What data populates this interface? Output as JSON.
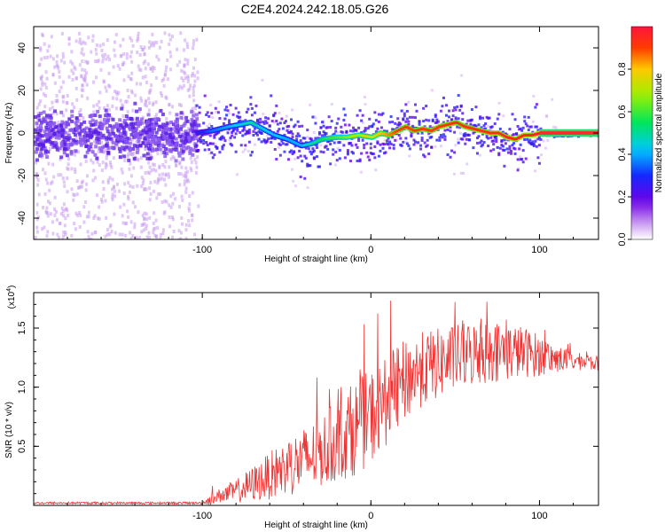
{
  "title": "C2E4.2024.242.18.05.G26",
  "colors": {
    "snr_line": "#ee3333",
    "axis": "#000000",
    "scatter_sparse": "#c79bf0",
    "scatter_dense": "#5a1ee6",
    "ridge_core": "#ff2a2a",
    "ridge_mid": "#22e06a",
    "ridge_edge": "#2ad4ff"
  },
  "chart_data": [
    {
      "type": "heatmap",
      "title": "C2E4.2024.242.18.05.G26",
      "xlabel": "Height of straight line (km)",
      "ylabel": "Frequency (Hz)",
      "xlim": [
        -200,
        135
      ],
      "ylim": [
        -50,
        50
      ],
      "x_ticks": [
        -100,
        0,
        100
      ],
      "x_tick_labels": [
        "-100",
        "0",
        "100"
      ],
      "y_ticks": [
        -40,
        -20,
        0,
        20,
        40
      ],
      "y_tick_labels": [
        "-40",
        "-20",
        "0",
        "20",
        "40"
      ],
      "grid": false,
      "colorbar": {
        "label": "Normalized spectral amplitude",
        "range": [
          0,
          1
        ],
        "ticks": [
          0.0,
          0.2,
          0.4,
          0.6,
          0.8
        ],
        "tick_labels": [
          "0.0",
          "0.2",
          "0.4",
          "0.6",
          "0.8"
        ],
        "colormap": "rainbow"
      },
      "ridge": {
        "x": [
          -105,
          -95,
          -85,
          -78,
          -72,
          -65,
          -58,
          -50,
          -42,
          -36,
          -30,
          -22,
          -15,
          -8,
          0,
          5,
          10,
          15,
          20,
          25,
          30,
          35,
          40,
          45,
          50,
          55,
          60,
          65,
          70,
          75,
          80,
          85,
          90,
          95,
          100,
          110,
          120,
          135
        ],
        "y": [
          0,
          1,
          3,
          4,
          5,
          2,
          -1,
          -3,
          -6,
          -5,
          -3,
          -2,
          -2,
          -1,
          -2,
          0,
          -1,
          1,
          3,
          1,
          2,
          1,
          3,
          4,
          5,
          3,
          2,
          1,
          0,
          0,
          -2,
          -3,
          -1,
          -1,
          0,
          0,
          0,
          0
        ],
        "amplitude": [
          0.25,
          0.35,
          0.4,
          0.45,
          0.5,
          0.45,
          0.42,
          0.4,
          0.4,
          0.5,
          0.55,
          0.6,
          0.65,
          0.7,
          0.75,
          0.8,
          0.85,
          0.9,
          0.9,
          0.9,
          0.9,
          0.9,
          0.92,
          0.92,
          0.92,
          0.92,
          0.92,
          0.93,
          0.94,
          0.95,
          0.95,
          0.95,
          0.95,
          0.96,
          0.98,
          1.0,
          1.0,
          1.0
        ]
      },
      "noise_region": {
        "x_range": [
          -200,
          -103
        ],
        "y_range": [
          -50,
          48
        ],
        "amplitude": [
          0,
          0.3
        ]
      }
    },
    {
      "type": "line",
      "xlabel": "Height of straight line (km)",
      "ylabel": "SNR (10 * v/v)",
      "scale_note": "(x10",
      "scale_exponent": "4",
      "xlim": [
        -200,
        135
      ],
      "ylim": [
        0,
        1.8
      ],
      "x_ticks": [
        -100,
        0,
        100
      ],
      "x_tick_labels": [
        "-100",
        "0",
        "100"
      ],
      "y_ticks": [
        0.5,
        1.0,
        1.5
      ],
      "y_tick_labels": [
        "0.5",
        "1.0",
        "1.5"
      ],
      "grid": false,
      "series": [
        {
          "envelope_x": [
            -200,
            -100,
            -95,
            -90,
            -80,
            -70,
            -60,
            -50,
            -40,
            -30,
            -20,
            -10,
            0,
            10,
            20,
            30,
            40,
            50,
            60,
            70,
            80,
            90,
            100,
            110,
            120,
            135
          ],
          "envelope_mean": [
            0.02,
            0.02,
            0.05,
            0.08,
            0.12,
            0.18,
            0.25,
            0.32,
            0.38,
            0.45,
            0.55,
            0.65,
            0.75,
            0.9,
            1.05,
            1.15,
            1.2,
            1.25,
            1.28,
            1.3,
            1.3,
            1.3,
            1.27,
            1.24,
            1.22,
            1.2
          ],
          "envelope_spread": [
            0.01,
            0.01,
            0.05,
            0.06,
            0.1,
            0.15,
            0.2,
            0.25,
            0.28,
            0.3,
            0.35,
            0.4,
            0.4,
            0.38,
            0.35,
            0.32,
            0.3,
            0.28,
            0.28,
            0.27,
            0.25,
            0.22,
            0.18,
            0.12,
            0.08,
            0.06
          ]
        }
      ]
    }
  ]
}
